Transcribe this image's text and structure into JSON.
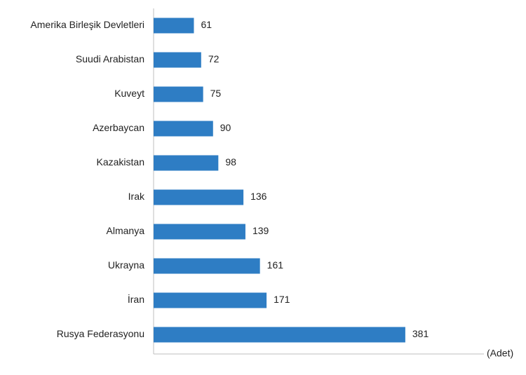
{
  "chart_data": {
    "type": "bar",
    "orientation": "horizontal",
    "x_label": "(Adet)",
    "categories": [
      "Amerika Birleşik Devletleri",
      "Suudi Arabistan",
      "Kuveyt",
      "Azerbaycan",
      "Kazakistan",
      "Irak",
      "Almanya",
      "Ukrayna",
      "İran",
      "Rusya Federasyonu"
    ],
    "values": [
      61,
      72,
      75,
      90,
      98,
      136,
      139,
      161,
      171,
      381
    ],
    "color": "#2e7dc4",
    "xlim": [
      0,
      500
    ]
  }
}
